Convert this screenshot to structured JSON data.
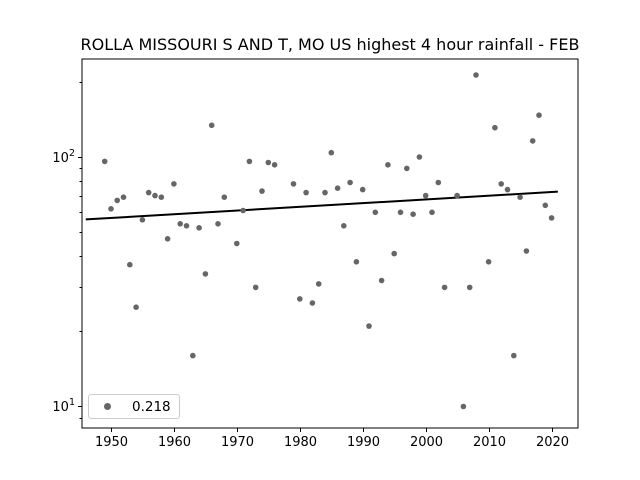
{
  "chart_data": {
    "type": "scatter",
    "title": "ROLLA MISSOURI S AND T, MO US highest 4 hour rainfall - FEB",
    "xlabel": "",
    "ylabel": "",
    "y_scale": "log",
    "grid": false,
    "x": [
      1949,
      1950,
      1951,
      1952,
      1953,
      1954,
      1955,
      1956,
      1957,
      1958,
      1959,
      1960,
      1961,
      1962,
      1963,
      1964,
      1965,
      1966,
      1967,
      1968,
      1970,
      1971,
      1972,
      1973,
      1974,
      1975,
      1976,
      1979,
      1980,
      1981,
      1982,
      1983,
      1984,
      1985,
      1986,
      1987,
      1988,
      1989,
      1990,
      1991,
      1992,
      1993,
      1994,
      1995,
      1996,
      1997,
      1998,
      1999,
      2000,
      2001,
      2002,
      2003,
      2005,
      2006,
      2007,
      2008,
      2010,
      2011,
      2012,
      2013,
      2014,
      2015,
      2016,
      2017,
      2018,
      2019,
      2020
    ],
    "y": [
      96,
      62,
      67,
      69,
      37,
      25,
      56,
      72,
      70,
      69,
      47,
      78,
      54,
      53,
      16,
      52,
      34,
      134,
      54,
      69,
      45,
      61,
      96,
      30,
      73,
      95,
      93,
      78,
      27,
      72,
      26,
      31,
      72,
      104,
      75,
      53,
      79,
      38,
      74,
      21,
      60,
      32,
      93,
      41,
      60,
      90,
      59,
      100,
      70,
      60,
      79,
      30,
      70,
      10,
      30,
      213,
      38,
      131,
      78,
      74,
      16,
      69,
      42,
      116,
      147,
      64,
      57
    ],
    "trend_line": {
      "x": [
        1946,
        2021
      ],
      "y": [
        56.2,
        72.6
      ],
      "slope": 0.218
    },
    "legend": {
      "label": "0.218",
      "position": "lower-left"
    },
    "x_ticks": [
      "1950",
      "1960",
      "1970",
      "1980",
      "1990",
      "2000",
      "2010",
      "2020"
    ],
    "y_major_ticks": [
      {
        "value": 10,
        "base": "10",
        "exp": "1"
      },
      {
        "value": 100,
        "base": "10",
        "exp": "2"
      }
    ],
    "y_minor_ticks": [
      9,
      20,
      30,
      40,
      50,
      60,
      70,
      80,
      90,
      200
    ],
    "xlim": [
      1945.4,
      2024.2
    ],
    "ylim": [
      8.2,
      247
    ],
    "colors": {
      "marker": "#666666",
      "trend": "#000000",
      "axis": "#000000"
    }
  }
}
